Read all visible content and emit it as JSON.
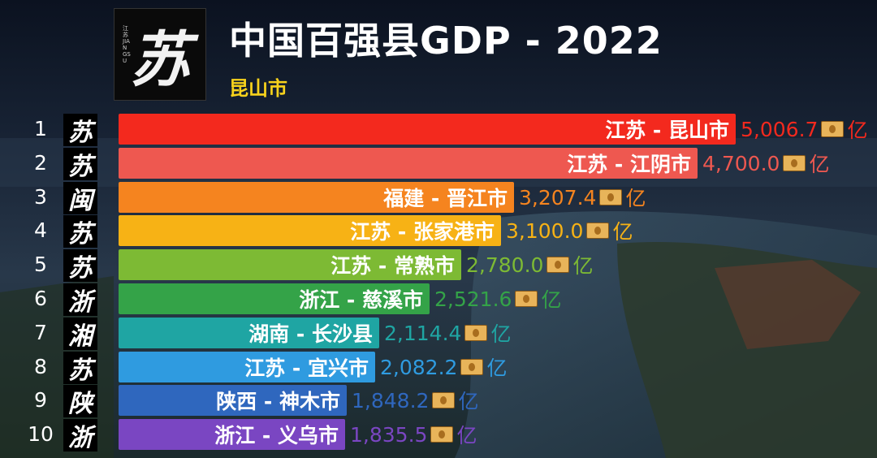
{
  "header": {
    "title": "中国百强县GDP - 2022",
    "subtitle": "昆山市",
    "logo_char": "苏",
    "logo_small_text": "江苏 JIANGSU"
  },
  "chart_data": {
    "type": "bar",
    "orientation": "horizontal",
    "title": "中国百强县GDP - 2022",
    "subtitle": "昆山市",
    "unit": "亿",
    "xlim": [
      0,
      5006.7
    ],
    "grid": false,
    "legend": "none",
    "ranks": [
      "1",
      "2",
      "3",
      "4",
      "5",
      "6",
      "7",
      "8",
      "9",
      "10"
    ],
    "badges": [
      "苏",
      "苏",
      "闽",
      "苏",
      "苏",
      "浙",
      "湘",
      "苏",
      "陕",
      "浙"
    ],
    "categories": [
      "江苏 - 昆山市",
      "江苏 - 江阴市",
      "福建 - 晋江市",
      "江苏 - 张家港市",
      "江苏 - 常熟市",
      "浙江 - 慈溪市",
      "湖南 - 长沙县",
      "江苏 - 宜兴市",
      "陕西 - 神木市",
      "浙江 - 义乌市"
    ],
    "values": [
      5006.7,
      4700.0,
      3207.4,
      3100.0,
      2780.0,
      2521.6,
      2114.4,
      2082.2,
      1848.2,
      1835.5
    ],
    "value_labels": [
      "5,006.7",
      "4,700.0",
      "3,207.4",
      "3,100.0",
      "2,780.0",
      "2,521.6",
      "2,114.4",
      "2,082.2",
      "1,848.2",
      "1,835.5"
    ],
    "colors": [
      "#f3291e",
      "#ee5850",
      "#f5841f",
      "#f7b215",
      "#7dba34",
      "#34a348",
      "#1fa5a3",
      "#2f9be0",
      "#2f67be",
      "#7a46c2"
    ],
    "value_colors": [
      "#f3291e",
      "#ee5850",
      "#f5841f",
      "#f7b215",
      "#7dba34",
      "#34a348",
      "#1fa5a3",
      "#2f9be0",
      "#2f67be",
      "#7a46c2"
    ],
    "value_icon": "money-bag-icon"
  }
}
